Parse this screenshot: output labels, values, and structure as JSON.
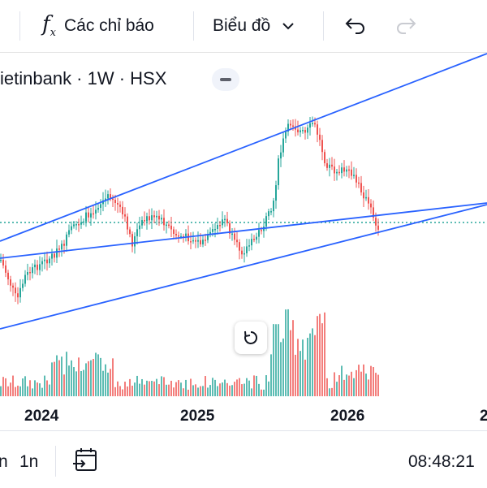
{
  "toolbar": {
    "indicators_label": "Các chỉ báo",
    "chart_label": "Biểu đồ",
    "indicators_icon": "function-icon",
    "undo_icon": "undo-icon",
    "redo_icon": "redo-icon"
  },
  "legend": {
    "symbol_text": "ietinbank · 1W · HSX"
  },
  "x_axis": {
    "labels": [
      "2024",
      "2025",
      "2026",
      "2"
    ]
  },
  "bottom_bar": {
    "left_fragment": "n",
    "interval": "1n",
    "time": "08:48:21",
    "date_range_icon": "calendar-arrow-icon"
  },
  "colors": {
    "up": "#26a69a",
    "down": "#ef5350",
    "trendline": "#2962ff",
    "price_line": "#26a69a"
  },
  "chart_data": {
    "type": "candlestick",
    "title": "",
    "xlabel": "",
    "ylabel": "",
    "x_ticks": [
      "2024",
      "2025",
      "2026"
    ],
    "trendlines": 3,
    "price_line": "dotted"
  }
}
